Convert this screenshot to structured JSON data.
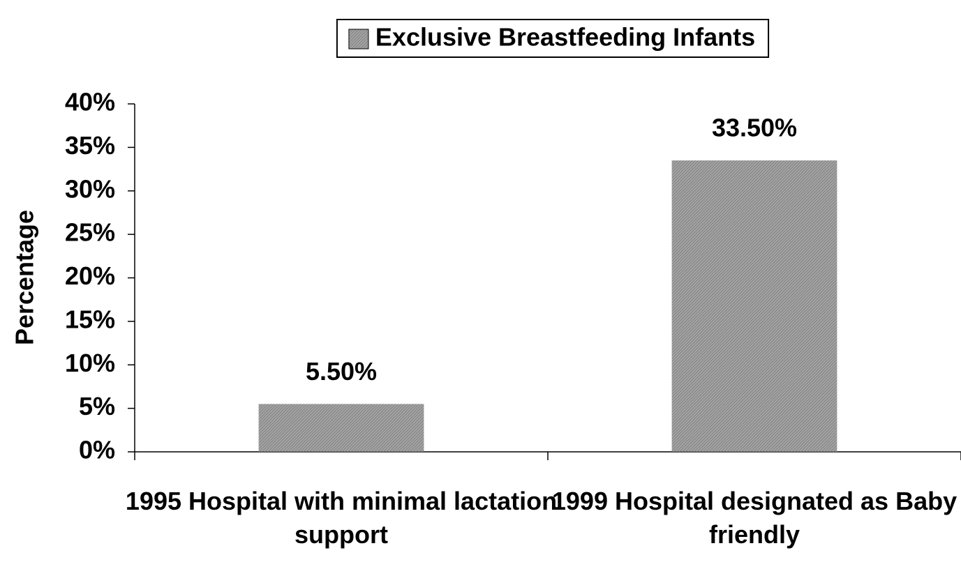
{
  "chart_data": {
    "type": "bar",
    "y_label": "Percentage",
    "categories": [
      "1995 Hospital with minimal lactation support",
      "1999 Hospital designated as Baby friendly"
    ],
    "series": [
      {
        "name": "Exclusive Breastfeeding Infants",
        "color": "#7f7f7f",
        "values": [
          5.5,
          33.5
        ],
        "value_labels": [
          "5.50%",
          "33.50%"
        ]
      }
    ],
    "ylim": [
      0,
      40
    ],
    "yticks": [
      {
        "value": 0,
        "label": "0%"
      },
      {
        "value": 5,
        "label": "5%"
      },
      {
        "value": 10,
        "label": "10%"
      },
      {
        "value": 15,
        "label": "15%"
      },
      {
        "value": 20,
        "label": "20%"
      },
      {
        "value": 25,
        "label": "25%"
      },
      {
        "value": 30,
        "label": "30%"
      },
      {
        "value": 35,
        "label": "35%"
      },
      {
        "value": 40,
        "label": "40%"
      }
    ],
    "legend": "top"
  }
}
